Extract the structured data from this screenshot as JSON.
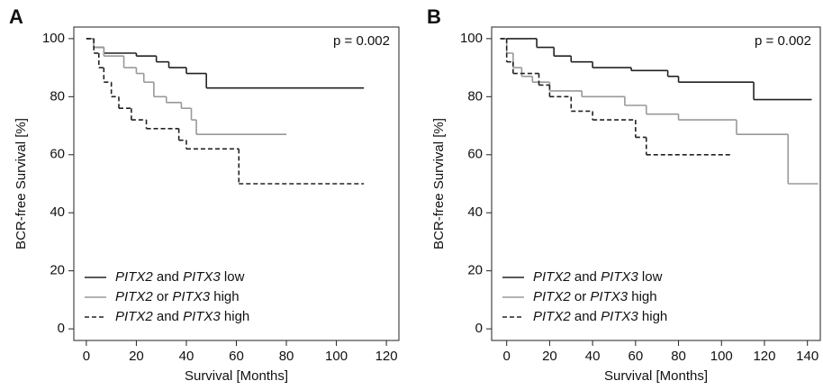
{
  "chart_data": [
    {
      "type": "step",
      "panel": "A",
      "annotation": "p = 0.002",
      "x_label": "Survival [Months]",
      "y_label": "BCR-free Survival [%]",
      "xlim": [
        -5,
        125
      ],
      "ylim": [
        -4,
        104
      ],
      "xticks": [
        0,
        20,
        40,
        60,
        80,
        100,
        120
      ],
      "yticks": [
        0,
        20,
        40,
        60,
        80,
        100
      ],
      "legend": "bottom-left",
      "series": [
        {
          "name": "PITX2 and PITX3 low",
          "color": "#222222",
          "dash": "solid",
          "x": [
            0,
            3,
            7,
            20,
            28,
            33,
            40,
            48
          ],
          "values": [
            100,
            97,
            95,
            94,
            92,
            90,
            88,
            83
          ],
          "end": 111
        },
        {
          "name": "PITX2 or PITX3 high",
          "color": "#999999",
          "dash": "solid",
          "x": [
            0,
            3,
            7,
            15,
            20,
            23,
            27,
            32,
            38,
            42,
            44
          ],
          "values": [
            100,
            97,
            94,
            90,
            88,
            85,
            80,
            78,
            76,
            72,
            67
          ],
          "end": 80
        },
        {
          "name": "PITX2 and PITX3 high",
          "color": "#222222",
          "dash": "dashed",
          "x": [
            0,
            3,
            5,
            7,
            10,
            13,
            18,
            24,
            37,
            40,
            61
          ],
          "values": [
            100,
            95,
            90,
            85,
            80,
            76,
            72,
            69,
            65,
            62,
            50
          ],
          "end": 111
        }
      ]
    },
    {
      "type": "step",
      "panel": "B",
      "annotation": "p = 0.002",
      "x_label": "Survival [Months]",
      "y_label": "BCR-free Survival [%]",
      "xlim": [
        -7,
        146
      ],
      "ylim": [
        -4,
        104
      ],
      "xticks": [
        0,
        20,
        40,
        60,
        80,
        100,
        120,
        140
      ],
      "yticks": [
        0,
        20,
        40,
        60,
        80,
        100
      ],
      "legend": "bottom-left",
      "series": [
        {
          "name": "PITX2 and PITX3 low",
          "color": "#222222",
          "dash": "solid",
          "x": [
            -3,
            10,
            14,
            22,
            30,
            40,
            58,
            75,
            80,
            115
          ],
          "values": [
            100,
            100,
            97,
            94,
            92,
            90,
            89,
            87,
            85,
            79
          ],
          "end": 142
        },
        {
          "name": "PITX2 or PITX3 high",
          "color": "#999999",
          "dash": "solid",
          "x": [
            -3,
            0,
            3,
            7,
            12,
            20,
            35,
            55,
            65,
            80,
            107,
            131
          ],
          "values": [
            100,
            95,
            90,
            87,
            85,
            82,
            80,
            77,
            74,
            72,
            67,
            50
          ],
          "end": 145
        },
        {
          "name": "PITX2 and PITX3 high",
          "color": "#222222",
          "dash": "dashed",
          "x": [
            -3,
            0,
            3,
            15,
            20,
            30,
            40,
            60,
            65
          ],
          "values": [
            100,
            92,
            88,
            84,
            80,
            75,
            72,
            66,
            60
          ],
          "end": 105
        }
      ]
    }
  ]
}
